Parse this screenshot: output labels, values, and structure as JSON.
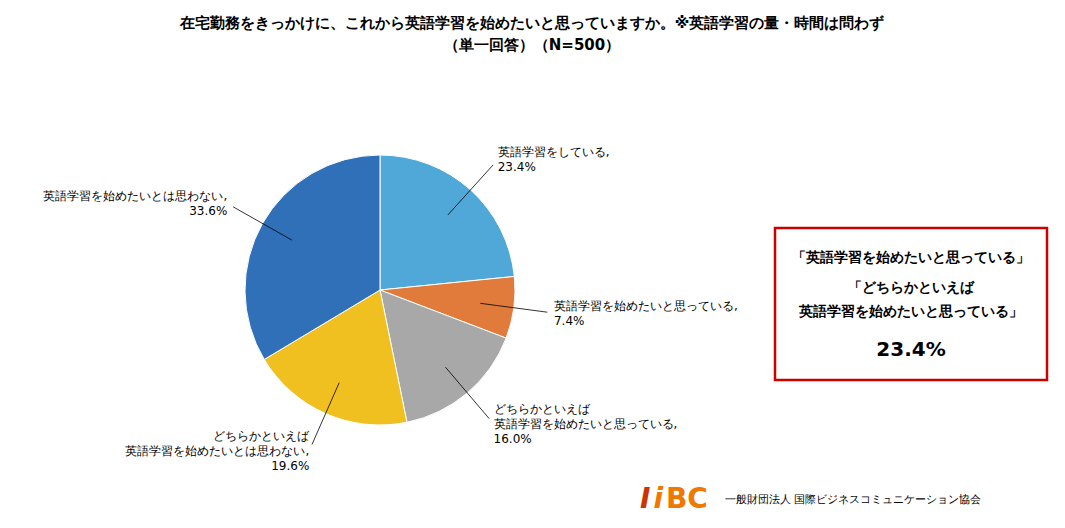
{
  "chart_data": {
    "type": "pie",
    "title": "在宅勤務をきっかけに、これから英語学習を始めたいと思っていますか。※英語学習の量・時間は問わず",
    "subtitle": "（単一回答）（N=500）",
    "categories": [
      "英語学習をしている,",
      "英語学習を始めたいと思っている,",
      "どちらかといえば\n英語学習を始めたいと思っている,",
      "どちらかといえば\n英語学習を始めたいとは思わない,",
      "英語学習を始めたいとは思わない,"
    ],
    "values": [
      23.4,
      7.4,
      16.0,
      19.6,
      33.6
    ],
    "value_labels": [
      "23.4%",
      "7.4%",
      "16.0%",
      "19.6%",
      "33.6%"
    ],
    "colors": [
      "#4FA8D8",
      "#E07B3C",
      "#A8A8A8",
      "#F0C020",
      "#3070B8"
    ],
    "data_labels": true,
    "annotations": [
      {
        "text": [
          "「英語学習を始めたいと思っている」",
          "「どちらかといえば",
          "英語学習を始めたいと思っている」",
          "23.4%"
        ],
        "color": "#CC0000"
      },
      {
        "text": [
          "I",
          "i",
          "BC"
        ],
        "colors": [
          "#CC3300",
          "#F07800",
          "#F07800"
        ]
      },
      {
        "text": [
          "一般財団法人 国際ビジネスコミュニケーション協会"
        ]
      }
    ]
  }
}
